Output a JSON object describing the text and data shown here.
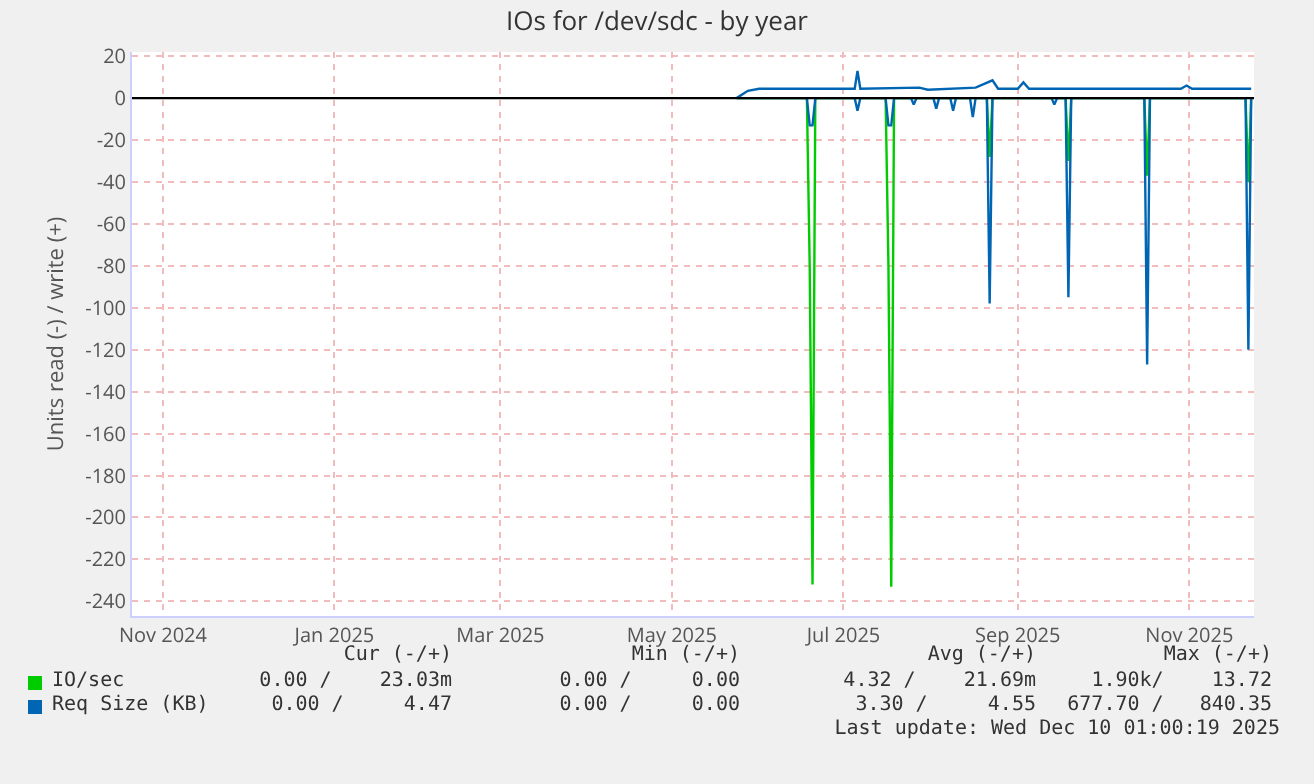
{
  "chart_data": {
    "type": "line",
    "title": "IOs for /dev/sdc - by year",
    "ylabel": "Units read (-) / write (+)",
    "xlim": [
      "2024-11-05",
      "2025-12-09"
    ],
    "xticks": [
      {
        "value": "2024-11-16",
        "label": "Nov 2024"
      },
      {
        "value": "2025-01-16",
        "label": "Jan 2025"
      },
      {
        "value": "2025-03-16",
        "label": "Mar 2025"
      },
      {
        "value": "2025-05-16",
        "label": "May 2025"
      },
      {
        "value": "2025-07-16",
        "label": "Jul 2025"
      },
      {
        "value": "2025-09-16",
        "label": "Sep 2025"
      },
      {
        "value": "2025-11-16",
        "label": "Nov 2025"
      }
    ],
    "ylim": [
      -247,
      22
    ],
    "yticks": [
      -240,
      -220,
      -200,
      -180,
      -160,
      -140,
      -120,
      -100,
      -80,
      -60,
      -40,
      -20,
      0,
      20
    ],
    "grid": true,
    "legend": "bottom",
    "line_style": "solid",
    "marker": "none",
    "ref_lines": [
      {
        "axis": "y",
        "value": 0,
        "color": "#000000"
      }
    ],
    "series": [
      {
        "name": "IO/sec",
        "color": "#00cc00",
        "x": [
          "2025-06-08",
          "2025-07-03",
          "2025-07-04",
          "2025-07-05",
          "2025-07-06",
          "2025-07-31",
          "2025-08-01",
          "2025-08-02",
          "2025-08-03",
          "2025-09-05",
          "2025-09-06",
          "2025-09-07",
          "2025-10-03",
          "2025-10-04",
          "2025-10-05",
          "2025-10-31",
          "2025-11-01",
          "2025-11-02",
          "2025-12-06",
          "2025-12-07",
          "2025-12-08"
        ],
        "values": [
          0,
          0,
          -80,
          -232,
          0,
          0,
          -80,
          -233,
          0,
          0,
          -28,
          0,
          0,
          -30,
          0,
          0,
          -37,
          0,
          0,
          -40,
          0
        ]
      },
      {
        "name": "Req Size (KB)",
        "color": "#0066b3",
        "x": [
          "2025-06-08",
          "2025-07-03",
          "2025-07-04",
          "2025-07-05",
          "2025-07-06",
          "2025-07-20",
          "2025-07-21",
          "2025-07-22",
          "2025-07-31",
          "2025-08-01",
          "2025-08-02",
          "2025-08-03",
          "2025-08-09",
          "2025-08-10",
          "2025-08-11",
          "2025-08-17",
          "2025-08-18",
          "2025-08-19",
          "2025-08-23",
          "2025-08-24",
          "2025-08-25",
          "2025-08-30",
          "2025-08-31",
          "2025-09-01",
          "2025-09-05",
          "2025-09-06",
          "2025-09-07",
          "2025-09-28",
          "2025-09-29",
          "2025-09-30",
          "2025-10-03",
          "2025-10-04",
          "2025-10-05",
          "2025-10-31",
          "2025-11-01",
          "2025-11-02",
          "2025-12-06",
          "2025-12-07",
          "2025-12-08"
        ],
        "values": [
          0,
          0,
          -13,
          -13,
          0,
          0,
          -6,
          0,
          0,
          -13,
          -13,
          0,
          0,
          -3,
          0,
          0,
          -5,
          0,
          0,
          -6,
          0,
          0,
          -9,
          0,
          0,
          -98,
          0,
          0,
          -3,
          0,
          0,
          -95,
          0,
          0,
          -127,
          0,
          0,
          -120,
          0
        ]
      },
      {
        "color": "#0066b3",
        "x": [
          "2025-06-08",
          "2025-06-12",
          "2025-06-16",
          "2025-07-10",
          "2025-07-20",
          "2025-07-21",
          "2025-07-22",
          "2025-08-12",
          "2025-08-15",
          "2025-09-01",
          "2025-09-07",
          "2025-09-09",
          "2025-09-16",
          "2025-09-18",
          "2025-09-20",
          "2025-10-10",
          "2025-11-13",
          "2025-11-15",
          "2025-11-17",
          "2025-12-08"
        ],
        "values": [
          0,
          3.5,
          4.5,
          4.5,
          4.5,
          13,
          4.5,
          5,
          4,
          5,
          8.5,
          4.5,
          4.5,
          7.5,
          4.5,
          4.5,
          4.5,
          6,
          4.5,
          4.5
        ]
      }
    ],
    "annotations": [
      "Cur (-/+)",
      "Min (-/+)",
      "Avg (-/+)",
      "Max (-/+)",
      "0.00 /    23.03m",
      "0.00 /     0.00",
      "4.32 /    21.69m",
      "1.90k/    13.72",
      "0.00 /     4.47",
      "0.00 /     0.00",
      "3.30 /     4.55",
      "677.70 /   840.35",
      "Last update: Wed Dec 10 01:00:19 2025"
    ]
  }
}
